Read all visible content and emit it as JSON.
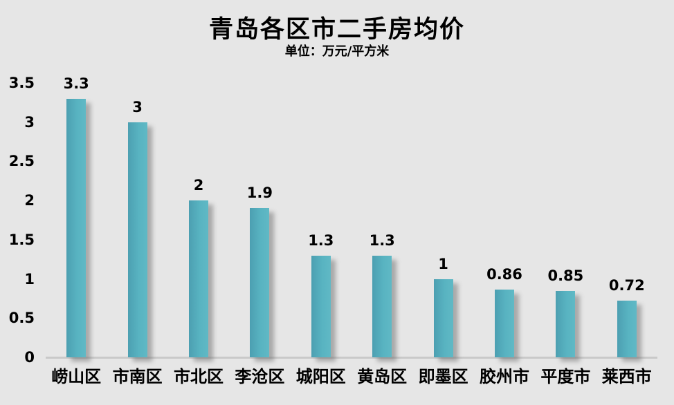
{
  "page": {
    "background_color": "#E6E6E6"
  },
  "chart_data": {
    "type": "bar",
    "title": "青岛各区市二手房均价",
    "subtitle": "单位：万元/平方米",
    "categories": [
      "崂山区",
      "市南区",
      "市北区",
      "李沧区",
      "城阳区",
      "黄岛区",
      "即墨区",
      "胶州市",
      "平度市",
      "莱西市"
    ],
    "values": [
      3.3,
      3,
      2,
      1.9,
      1.3,
      1.3,
      1,
      0.86,
      0.85,
      0.72
    ],
    "value_labels": [
      "3.3",
      "3",
      "2",
      "1.9",
      "1.3",
      "1.3",
      "1",
      "0.86",
      "0.85",
      "0.72"
    ],
    "xlabel": "",
    "ylabel": "",
    "ylim": [
      0,
      3.5
    ],
    "yticks": [
      0,
      0.5,
      1,
      1.5,
      2,
      2.5,
      3,
      3.5
    ],
    "ytick_labels": [
      "0",
      "0.5",
      "1",
      "1.5",
      "2",
      "2.5",
      "3",
      "3.5"
    ],
    "grid": false,
    "legend": "none",
    "colors": {
      "bar_gradient_left": "#4C9FB1",
      "bar_gradient_right": "#60B9C5",
      "axis_line": "#C9C9C9",
      "text": "#000000",
      "background": "#E6E6E6"
    }
  }
}
